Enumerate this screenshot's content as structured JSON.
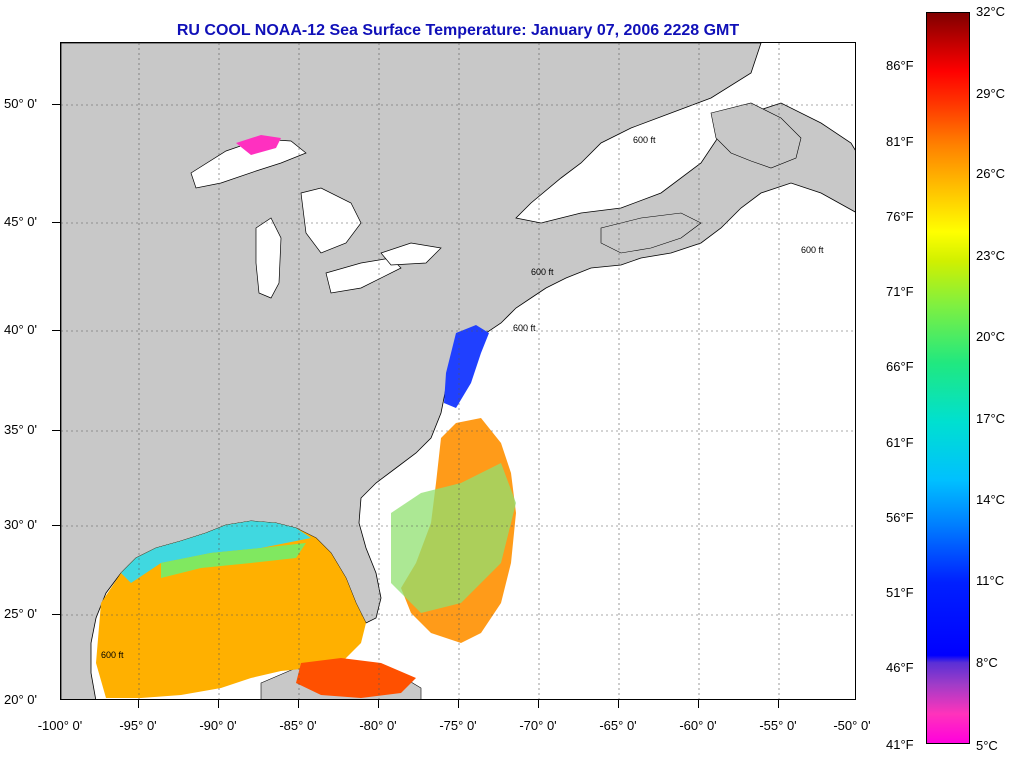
{
  "title": "RU COOL  NOAA-12  Sea Surface Temperature:  January 07, 2006 2228 GMT",
  "lat_axis": [
    "20° 0'",
    "25° 0'",
    "30° 0'",
    "35° 0'",
    "40° 0'",
    "45° 0'",
    "50° 0'"
  ],
  "lon_axis": [
    "-100° 0'",
    "-95° 0'",
    "-90° 0'",
    "-85° 0'",
    "-80° 0'",
    "-75° 0'",
    "-70° 0'",
    "-65° 0'",
    "-60° 0'",
    "-55° 0'",
    "-50° 0'"
  ],
  "colorbar": {
    "celsius": [
      "32°C",
      "29°C",
      "26°C",
      "23°C",
      "20°C",
      "17°C",
      "14°C",
      "11°C",
      "8°C",
      "5°C"
    ],
    "fahrenheit": [
      "86°F",
      "81°F",
      "76°F",
      "71°F",
      "66°F",
      "61°F",
      "56°F",
      "51°F",
      "46°F",
      "41°F"
    ]
  },
  "isobath_label": "600 ft",
  "colors": {
    "land": "#c8c8c8",
    "no_data": "#ffffff",
    "title": "#1010b8",
    "grid": "#555555"
  }
}
